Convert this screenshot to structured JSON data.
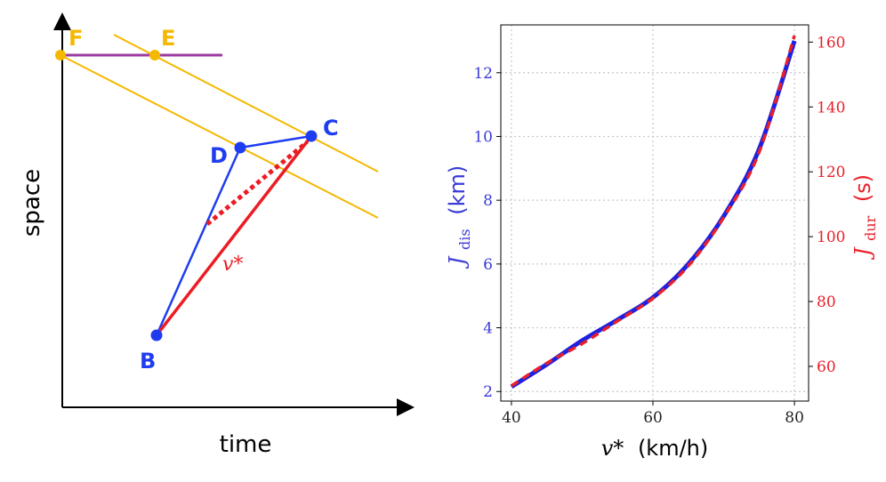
{
  "left_diagram": {
    "xlabel": "time",
    "ylabel": "space",
    "points": {
      "F": "F",
      "E": "E",
      "C": "C",
      "D": "D",
      "B": "B"
    },
    "line_label": "v*",
    "colors": {
      "yellow": "#f5b800",
      "purple": "#9c3aa0",
      "blue": "#1f3df0",
      "red": "#ec1c24"
    }
  },
  "chart_data": {
    "type": "line",
    "xlabel_var": "v*",
    "xlabel_unit": "(km/h)",
    "ylabel_left_var": "J",
    "ylabel_left_sub": "dis",
    "ylabel_left_unit": "(km)",
    "ylabel_right_var": "J",
    "ylabel_right_sub": "dur",
    "ylabel_right_unit": "(s)",
    "xlim": [
      38.5,
      82
    ],
    "ylim_left": [
      1.7,
      13.5
    ],
    "ylim_right": [
      49.3,
      165.3
    ],
    "x_ticks": [
      40,
      60,
      80
    ],
    "y_ticks_left": [
      2,
      4,
      6,
      8,
      10,
      12
    ],
    "y_ticks_right": [
      60,
      80,
      100,
      120,
      140,
      160
    ],
    "grid": true,
    "series": [
      {
        "name": "J_dis",
        "axis": "left",
        "color": "#2020e0",
        "style": "solid",
        "x": [
          40,
          45,
          50,
          55,
          60,
          65,
          70,
          75,
          80
        ],
        "values": [
          2.15,
          2.85,
          3.6,
          4.25,
          4.95,
          6.0,
          7.5,
          9.6,
          13.0
        ]
      },
      {
        "name": "J_dur",
        "axis": "right",
        "color": "#e8202a",
        "style": "dashed",
        "x": [
          40,
          45,
          50,
          55,
          60,
          65,
          70,
          75,
          80
        ],
        "values": [
          54,
          61,
          67,
          74,
          81,
          91,
          106,
          126,
          162
        ]
      }
    ]
  }
}
